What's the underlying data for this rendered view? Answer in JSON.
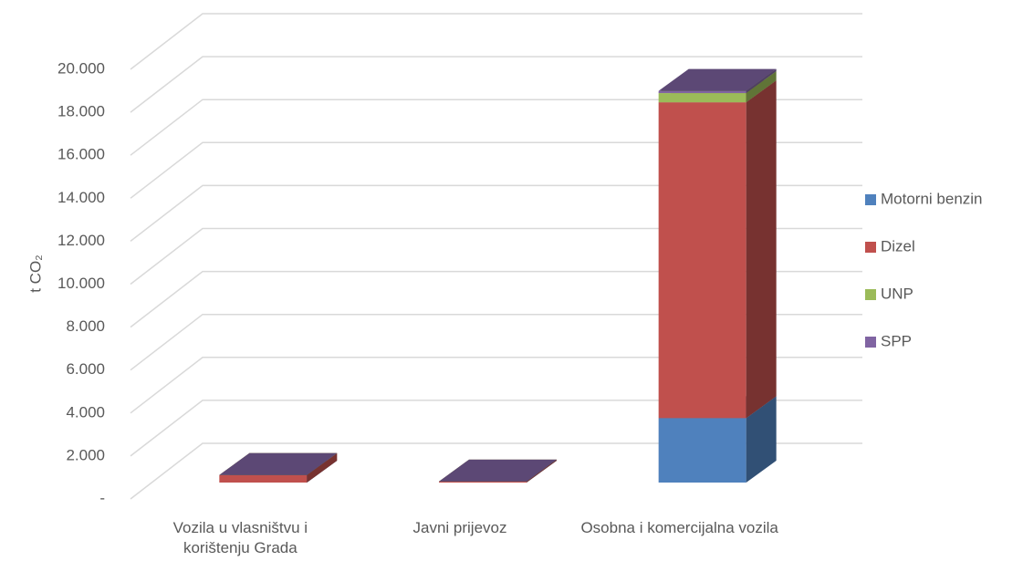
{
  "chart_data": {
    "type": "bar3d_stacked",
    "y_label": "t CO₂",
    "categories": [
      "Vozila u vlasništvu i korištenju Grada",
      "Javni prijevoz",
      "Osobna i komercijalna vozila"
    ],
    "series": [
      {
        "name": "Motorni benzin",
        "color": "#4f81bd",
        "values": [
          0,
          0,
          3000
        ]
      },
      {
        "name": "Dizel",
        "color": "#c0504d",
        "values": [
          350,
          50,
          14700
        ]
      },
      {
        "name": "UNP",
        "color": "#9bbb59",
        "values": [
          0,
          0,
          430
        ]
      },
      {
        "name": "SPP",
        "color": "#8064a2",
        "values": [
          0,
          0,
          100
        ]
      }
    ],
    "ylim": [
      0,
      20000
    ],
    "yticks": [
      {
        "value": 0,
        "label": "-"
      },
      {
        "value": 2000,
        "label": "2.000"
      },
      {
        "value": 4000,
        "label": "4.000"
      },
      {
        "value": 6000,
        "label": "6.000"
      },
      {
        "value": 8000,
        "label": "8.000"
      },
      {
        "value": 10000,
        "label": "10.000"
      },
      {
        "value": 12000,
        "label": "12.000"
      },
      {
        "value": 14000,
        "label": "14.000"
      },
      {
        "value": 16000,
        "label": "16.000"
      },
      {
        "value": 18000,
        "label": "18.000"
      },
      {
        "value": 20000,
        "label": "20.000"
      }
    ],
    "grid": true,
    "legend": "right"
  }
}
